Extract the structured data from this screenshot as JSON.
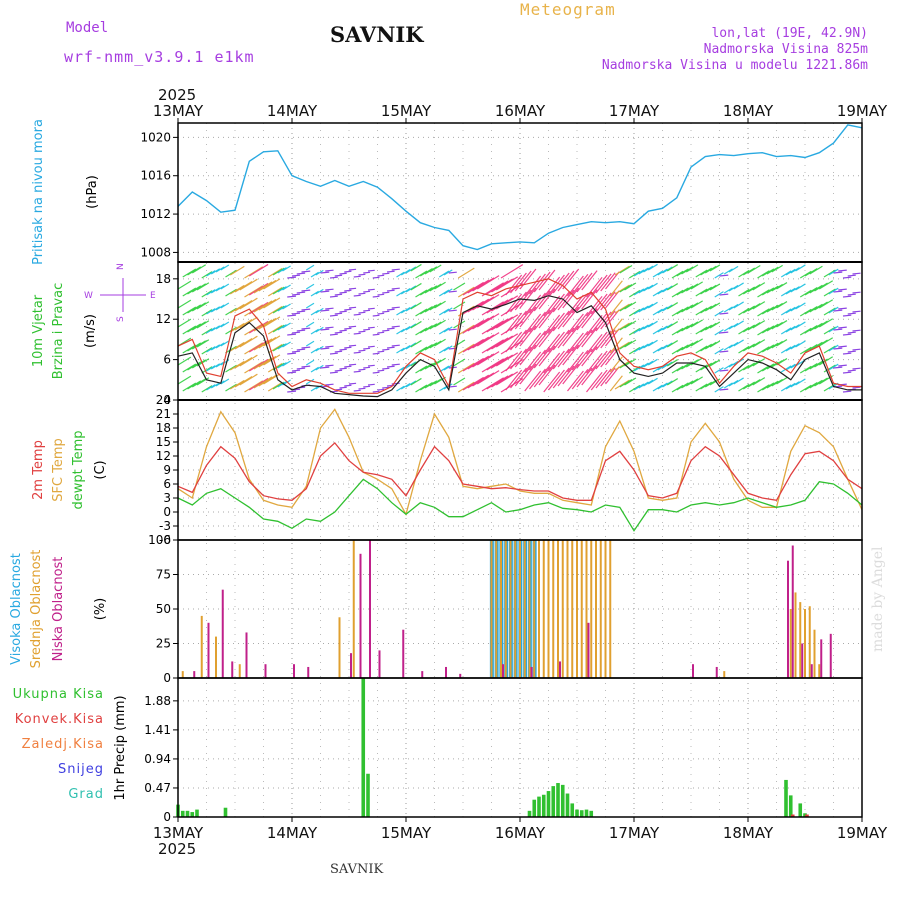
{
  "header": {
    "title": "SAVNIK",
    "meteogram_label": "Meteogram",
    "model_label": "Model",
    "model_name": "wrf-nmm_v3.9.1 e1km",
    "location_line": "lon,lat (19E, 42.9N)",
    "elevation_line": "Nadmorska Visina 825m",
    "model_elevation_line": "Nadmorska Visina u modelu 1221.86m"
  },
  "time_axis": {
    "year": "2025",
    "labels": [
      "13MAY",
      "14MAY",
      "15MAY",
      "16MAY",
      "17MAY",
      "18MAY",
      "19MAY"
    ]
  },
  "footer": {
    "station": "SAVNIK",
    "credit": "made by Angel"
  },
  "colors": {
    "pressure": "#29a9e1",
    "wind_speed": "#222222",
    "gust": "#e04030",
    "temp_2m": "#e04040",
    "temp_sfc": "#e0a840",
    "dewpoint": "#30c030",
    "cloud_high": "#29a9e1",
    "cloud_mid": "#e0a030",
    "cloud_low": "#c0208a",
    "precip_total": "#30c030",
    "precip_conv": "#e04040",
    "precip_frz": "#f08040",
    "precip_snow": "#4040e0",
    "precip_hail": "#30c0b0"
  },
  "chart_data": [
    {
      "type": "line",
      "title": "Pritisak na nivou mora",
      "ylabel": "(hPa)",
      "ylim": [
        1007,
        1021.5
      ],
      "yticks": [
        "1008",
        "1012",
        "1016",
        "1020"
      ],
      "x": [
        0,
        3,
        6,
        9,
        12,
        15,
        18,
        21,
        24,
        27,
        30,
        33,
        36,
        39,
        42,
        45,
        48,
        51,
        54,
        57,
        60,
        63,
        66,
        69,
        72,
        75,
        78,
        81,
        84,
        87,
        90,
        93,
        96,
        99,
        102,
        105,
        108,
        111,
        114,
        117,
        120,
        123,
        126,
        129,
        132,
        135,
        138,
        141,
        144
      ],
      "series": [
        {
          "name": "Pritisak na nivou mora",
          "values": [
            1012.8,
            1014.3,
            1013.4,
            1012.2,
            1012.4,
            1017.5,
            1018.5,
            1018.6,
            1016.0,
            1015.4,
            1014.9,
            1015.5,
            1014.9,
            1015.4,
            1014.8,
            1013.6,
            1012.3,
            1011.1,
            1010.6,
            1010.3,
            1008.7,
            1008.3,
            1008.9,
            1009.0,
            1009.1,
            1009.0,
            1010.0,
            1010.6,
            1010.9,
            1011.2,
            1011.1,
            1011.2,
            1011.0,
            1012.3,
            1012.6,
            1013.7,
            1016.9,
            1018.0,
            1018.2,
            1018.1,
            1018.3,
            1018.4,
            1018.0,
            1018.1,
            1017.9,
            1018.4,
            1019.4,
            1021.3,
            1021.0
          ]
        }
      ]
    },
    {
      "type": "line",
      "title": "10m Vjetar Brzina i Pravac",
      "ylabel": "(m/s)",
      "ylim": [
        0,
        20.5
      ],
      "yticks": [
        "0",
        "6",
        "12",
        "18"
      ],
      "direction_legend": [
        "N",
        "W",
        "E",
        "S"
      ],
      "x": [
        0,
        3,
        6,
        9,
        12,
        15,
        18,
        21,
        24,
        27,
        30,
        33,
        36,
        39,
        42,
        45,
        48,
        51,
        54,
        57,
        60,
        63,
        66,
        69,
        72,
        75,
        78,
        81,
        84,
        87,
        90,
        93,
        96,
        99,
        102,
        105,
        108,
        111,
        114,
        117,
        120,
        123,
        126,
        129,
        132,
        135,
        138,
        141,
        144
      ],
      "series": [
        {
          "name": "speed",
          "values": [
            6.5,
            7.0,
            3.0,
            2.5,
            10.0,
            11.5,
            9.5,
            3.0,
            1.5,
            2.2,
            2.0,
            1.0,
            0.8,
            0.6,
            0.5,
            1.5,
            4.0,
            6.0,
            5.0,
            1.5,
            13.0,
            14.0,
            13.5,
            14.2,
            15.0,
            14.8,
            15.5,
            15.0,
            13.0,
            14.0,
            11.5,
            6.0,
            4.0,
            3.5,
            4.0,
            5.5,
            5.5,
            5.0,
            2.0,
            4.0,
            6.0,
            5.5,
            4.5,
            3.0,
            6.0,
            7.0,
            2.0,
            1.5,
            1.5
          ]
        },
        {
          "name": "gust",
          "values": [
            8.0,
            9.0,
            4.0,
            3.5,
            12.5,
            13.5,
            11.0,
            4.0,
            2.0,
            3.0,
            2.5,
            1.5,
            1.0,
            1.0,
            1.0,
            2.0,
            5.0,
            7.0,
            6.0,
            2.0,
            15.0,
            16.0,
            15.5,
            16.5,
            17.0,
            17.5,
            18.0,
            17.0,
            15.0,
            16.0,
            13.5,
            7.0,
            5.0,
            4.5,
            5.0,
            6.5,
            7.0,
            6.0,
            2.5,
            5.0,
            7.0,
            6.5,
            5.5,
            4.0,
            7.0,
            8.0,
            2.5,
            2.0,
            2.0
          ]
        }
      ]
    },
    {
      "type": "line",
      "ylabel": "(C)",
      "ylim": [
        -6,
        24
      ],
      "yticks": [
        "-6",
        "-3",
        "0",
        "3",
        "6",
        "9",
        "12",
        "15",
        "18",
        "21",
        "24"
      ],
      "x": [
        0,
        3,
        6,
        9,
        12,
        15,
        18,
        21,
        24,
        27,
        30,
        33,
        36,
        39,
        42,
        45,
        48,
        51,
        54,
        57,
        60,
        63,
        66,
        69,
        72,
        75,
        78,
        81,
        84,
        87,
        90,
        93,
        96,
        99,
        102,
        105,
        108,
        111,
        114,
        117,
        120,
        123,
        126,
        129,
        132,
        135,
        138,
        141,
        144
      ],
      "series": [
        {
          "name": "2m Temp",
          "values": [
            5.5,
            4.2,
            10.0,
            14.0,
            11.5,
            6.5,
            3.5,
            2.8,
            2.5,
            5.0,
            12.0,
            14.8,
            11.0,
            8.5,
            8.0,
            7.0,
            3.5,
            9.0,
            14.0,
            11.0,
            6.0,
            5.5,
            5.0,
            5.2,
            4.8,
            4.5,
            4.5,
            3.0,
            2.5,
            2.5,
            11.0,
            13.0,
            9.0,
            3.5,
            3.0,
            4.0,
            11.0,
            14.0,
            12.0,
            8.0,
            4.0,
            3.0,
            2.5,
            8.0,
            12.5,
            13.0,
            11.0,
            7.0,
            5.0
          ]
        },
        {
          "name": "SFC Temp",
          "values": [
            5.0,
            3.0,
            14.0,
            21.5,
            17.0,
            7.0,
            2.5,
            1.5,
            1.0,
            5.5,
            18.0,
            22.0,
            16.0,
            8.5,
            7.0,
            5.0,
            -0.5,
            11.0,
            21.0,
            16.0,
            5.5,
            5.0,
            5.5,
            6.0,
            4.5,
            4.0,
            4.0,
            2.5,
            2.0,
            1.5,
            14.0,
            19.5,
            13.0,
            3.0,
            2.5,
            3.0,
            15.0,
            19.0,
            15.0,
            7.0,
            2.5,
            1.0,
            1.0,
            13.0,
            18.5,
            17.0,
            14.0,
            7.0,
            0.5
          ]
        },
        {
          "name": "dewpt Temp",
          "values": [
            3.0,
            1.5,
            4.0,
            5.0,
            3.0,
            1.0,
            -1.5,
            -2.0,
            -3.5,
            -1.5,
            -2.0,
            0.0,
            3.5,
            7.0,
            5.0,
            2.0,
            -0.5,
            2.0,
            1.0,
            -1.0,
            -1.0,
            0.5,
            2.0,
            0.0,
            0.5,
            1.5,
            2.0,
            0.8,
            0.5,
            0.0,
            1.5,
            1.0,
            -4.0,
            0.5,
            0.5,
            0.0,
            1.5,
            2.0,
            1.5,
            2.0,
            3.0,
            2.0,
            1.0,
            1.5,
            2.5,
            6.5,
            6.0,
            4.0,
            1.5
          ]
        }
      ]
    },
    {
      "type": "bar",
      "ylabel": "(%)",
      "ylim": [
        0,
        100
      ],
      "yticks": [
        "0",
        "25",
        "50",
        "75",
        "100"
      ],
      "series": [
        {
          "name": "Visoka Oblacnost",
          "x": [
            66.5,
            67.5,
            68.5,
            69.5,
            70.5,
            71.5,
            72.5,
            73.5,
            74.5,
            75.5
          ],
          "values": [
            100,
            100,
            100,
            100,
            100,
            100,
            100,
            100,
            100,
            100
          ]
        },
        {
          "name": "Srednja Oblacnost",
          "x": [
            1,
            5,
            8,
            13,
            34,
            37,
            66,
            67,
            68,
            69,
            70,
            71,
            72,
            73,
            74,
            75,
            76,
            77,
            78,
            79,
            80,
            81,
            82,
            83,
            84,
            85,
            86,
            87,
            88,
            89,
            90,
            91,
            115,
            129,
            130,
            131,
            132,
            133,
            134,
            135
          ],
          "values": [
            5,
            45,
            30,
            10,
            44,
            100,
            100,
            100,
            100,
            100,
            100,
            100,
            100,
            100,
            100,
            100,
            100,
            100,
            100,
            100,
            100,
            100,
            100,
            100,
            100,
            100,
            100,
            100,
            100,
            100,
            100,
            100,
            5,
            50,
            62,
            55,
            50,
            52,
            35,
            10
          ]
        },
        {
          "name": "Niska Oblacnost",
          "x": [
            3,
            6,
            9,
            11,
            14,
            18,
            24,
            27,
            36,
            38,
            40,
            42,
            47,
            51,
            56,
            59,
            68,
            74,
            80,
            86,
            108,
            113,
            128,
            129,
            131,
            133,
            135,
            137
          ],
          "values": [
            5,
            40,
            64,
            12,
            33,
            10,
            10,
            8,
            18,
            90,
            100,
            20,
            35,
            5,
            8,
            3,
            10,
            8,
            12,
            40,
            10,
            8,
            85,
            96,
            25,
            10,
            28,
            32
          ]
        }
      ]
    },
    {
      "type": "bar",
      "ylabel": "1hr Precip (mm)",
      "ylim": [
        0,
        2.25
      ],
      "yticks": [
        "0",
        "0.47",
        "0.94",
        "1.41",
        "1.88"
      ],
      "series": [
        {
          "name": "Ukupna Kisa",
          "x": [
            0,
            1,
            2,
            3,
            4,
            10,
            39,
            40,
            74,
            75,
            76,
            77,
            78,
            79,
            80,
            81,
            82,
            83,
            84,
            85,
            86,
            87,
            128,
            129,
            131,
            132
          ],
          "values": [
            0.2,
            0.1,
            0.1,
            0.08,
            0.12,
            0.15,
            2.25,
            0.7,
            0.1,
            0.28,
            0.33,
            0.36,
            0.42,
            0.5,
            0.55,
            0.52,
            0.38,
            0.22,
            0.12,
            0.11,
            0.12,
            0.1,
            0.6,
            0.35,
            0.22,
            0.06
          ]
        },
        {
          "name": "Konvek.Kisa",
          "x": [
            129,
            132
          ],
          "values": [
            0.04,
            0.04
          ]
        },
        {
          "name": "Zaledj.Kisa",
          "x": [],
          "values": []
        },
        {
          "name": "Snijeg",
          "x": [],
          "values": []
        },
        {
          "name": "Grad",
          "x": [],
          "values": []
        }
      ]
    }
  ],
  "panel_labels": {
    "pressure": [
      "Pritisak na nivou mora"
    ],
    "wind": [
      "10m Vjetar",
      "Brzina i Pravac"
    ],
    "temp": [
      "2m Temp",
      "SFC Temp",
      "dewpt Temp"
    ],
    "cloud": [
      "Visoka Oblacnost",
      "Srednja Oblacnost",
      "Niska Oblacnost"
    ],
    "precip": [
      "Ukupna Kisa",
      "Konvek.Kisa",
      "Zaledj.Kisa",
      "Snijeg",
      "Grad"
    ]
  }
}
